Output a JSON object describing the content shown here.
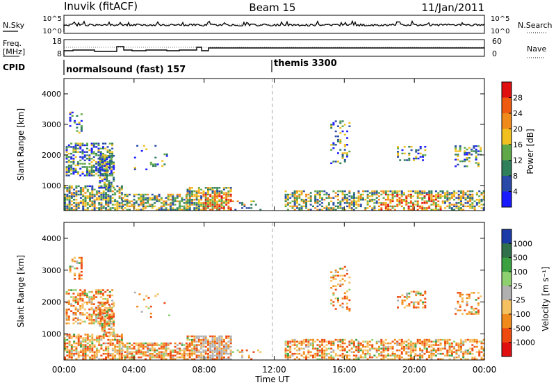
{
  "header": {
    "station": "Inuvik (fitACF)",
    "beam": "Beam 15",
    "date": "11/Jan/2011"
  },
  "top_panels": {
    "nsky_label": "N.Sky",
    "nsearch_label": "N.Search",
    "nsky_ticks": [
      "10^5",
      "10^0"
    ],
    "nsearch_ticks": [
      "10^5",
      "10^0"
    ],
    "freq_label_1": "Freq.",
    "freq_label_2": "[MHz]",
    "freq_ticks": [
      "18",
      "8"
    ],
    "nave_label": "Nave",
    "nave_ticks": [
      "60",
      "0"
    ],
    "cpid_label": "CPID",
    "cpid_1": "normalsound (fast) 157",
    "cpid_2": "themis 3300"
  },
  "chart_data": [
    {
      "type": "heatmap",
      "name": "power",
      "ylabel": "Slant Range [km]",
      "ylim": [
        180,
        4500
      ],
      "y_ticks": [
        "1000",
        "2000",
        "3000",
        "4000"
      ],
      "xlim": [
        "00:00",
        "24:00"
      ],
      "colorbar_label": "Power [dB]",
      "colorbar_ticks": [
        "4",
        "8",
        "12",
        "16",
        "20",
        "24",
        "28"
      ],
      "colors": [
        "#1a1aff",
        "#2a4aa8",
        "#2f7f5a",
        "#5fa84a",
        "#f0c020",
        "#f08a1a",
        "#ee5a10",
        "#e01010"
      ],
      "dashed_marker_x": "12:00"
    },
    {
      "type": "heatmap",
      "name": "velocity",
      "ylabel": "Slant Range [km]",
      "ylim": [
        180,
        4500
      ],
      "y_ticks": [
        "1000",
        "2000",
        "3000",
        "4000"
      ],
      "xlim": [
        "00:00",
        "24:00"
      ],
      "colorbar_label": "Velocity [m s⁻¹]",
      "colorbar_ticks": [
        "1000",
        "500",
        "100",
        "25",
        "-25",
        "-100",
        "-500",
        "-1000"
      ],
      "colors": [
        "#1a3aa8",
        "#2f6f4a",
        "#3aa040",
        "#8ed070",
        "#b0b0b0",
        "#f5c060",
        "#f08a1a",
        "#ee4a10",
        "#e01010"
      ],
      "dashed_marker_x": "12:00"
    }
  ],
  "x_axis": {
    "ticks": [
      "00:00",
      "04:00",
      "08:00",
      "12:00",
      "16:00",
      "20:00",
      "00:00"
    ],
    "label": "Time UT"
  }
}
